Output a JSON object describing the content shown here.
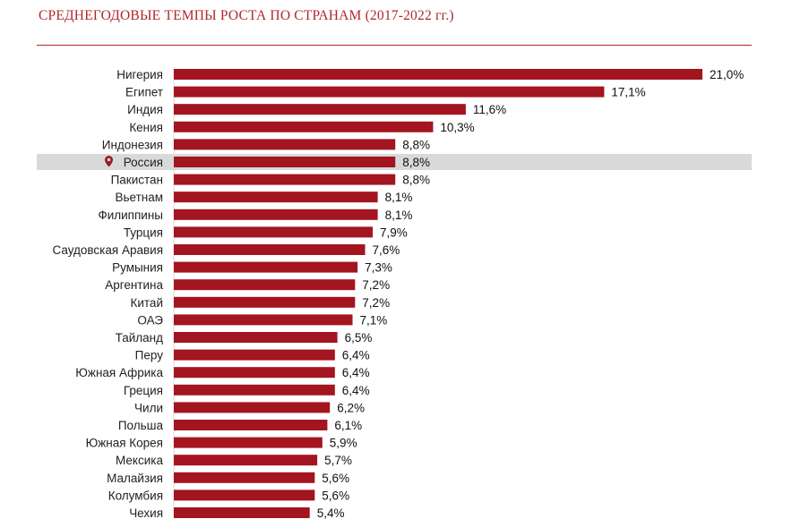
{
  "title": "СРЕДНЕГОДОВЫЕ ТЕМПЫ РОСТА ПО СТРАНАМ (2017-2022 гг.)",
  "colors": {
    "bar": "#a3151f",
    "accent": "#b0262a",
    "highlight_row": "#d9d9d9",
    "pin": "#9b1b22"
  },
  "chart_data": {
    "type": "bar",
    "orientation": "horizontal",
    "title": "СРЕДНЕГОДОВЫЕ ТЕМПЫ РОСТА ПО СТРАНАМ (2017-2022 гг.)",
    "xlabel": "",
    "ylabel": "",
    "xlim": [
      0,
      21
    ],
    "grid": false,
    "highlighted_category": "Россия",
    "highlight_icon": "map-pin-icon",
    "categories": [
      "Нигерия",
      "Египет",
      "Индия",
      "Кения",
      "Индонезия",
      "Россия",
      "Пакистан",
      "Вьетнам",
      "Филиппины",
      "Турция",
      "Саудовская Аравия",
      "Румыния",
      "Аргентина",
      "Китай",
      "ОАЭ",
      "Тайланд",
      "Перу",
      "Южная Африка",
      "Греция",
      "Чили",
      "Польша",
      "Южная Корея",
      "Мексика",
      "Малайзия",
      "Колумбия",
      "Чехия"
    ],
    "values": [
      21.0,
      17.1,
      11.6,
      10.3,
      8.8,
      8.8,
      8.8,
      8.1,
      8.1,
      7.9,
      7.6,
      7.3,
      7.2,
      7.2,
      7.1,
      6.5,
      6.4,
      6.4,
      6.4,
      6.2,
      6.1,
      5.9,
      5.7,
      5.6,
      5.6,
      5.4
    ],
    "value_labels": [
      "21,0%",
      "17,1%",
      "11,6%",
      "10,3%",
      "8,8%",
      "8,8%",
      "8,8%",
      "8,1%",
      "8,1%",
      "7,9%",
      "7,6%",
      "7,3%",
      "7,2%",
      "7,2%",
      "7,1%",
      "6,5%",
      "6,4%",
      "6,4%",
      "6,4%",
      "6,2%",
      "6,1%",
      "5,9%",
      "5,7%",
      "5,6%",
      "5,6%",
      "5,4%"
    ]
  }
}
